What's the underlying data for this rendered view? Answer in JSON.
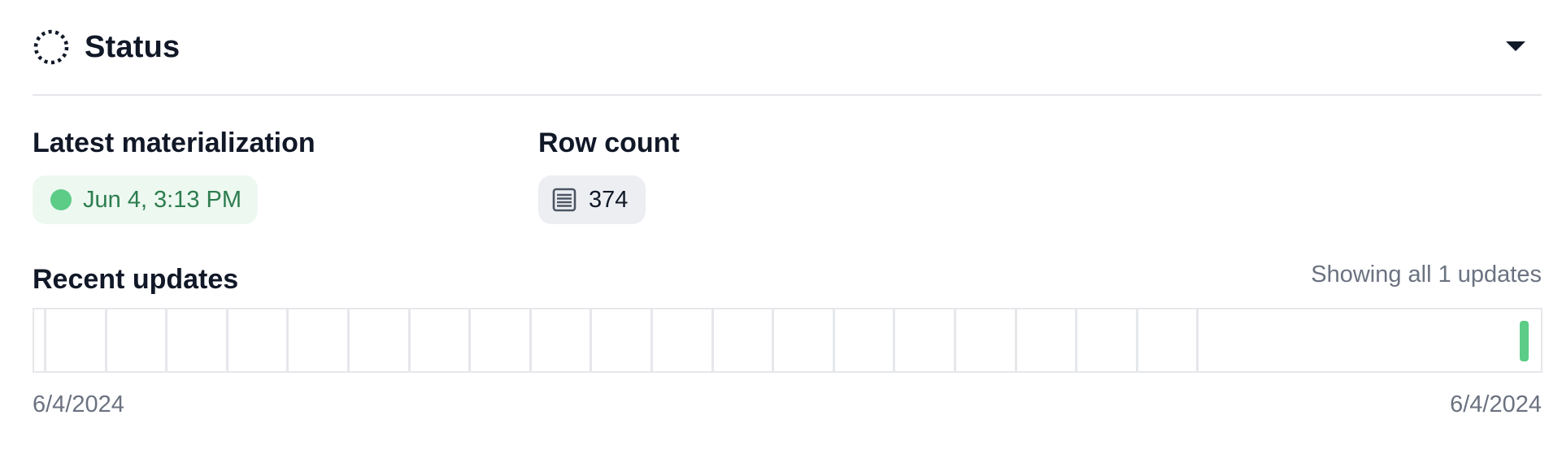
{
  "header": {
    "title": "Status",
    "status_icon": "dashed-circle-icon",
    "collapse_icon": "caret-down-icon"
  },
  "latest_materialization": {
    "label": "Latest materialization",
    "value": "Jun 4, 3:13 PM",
    "status": "success",
    "status_color": "#5ccc87"
  },
  "row_count": {
    "label": "Row count",
    "value": "374",
    "icon": "table-rows-icon"
  },
  "recent_updates": {
    "title": "Recent updates",
    "summary": "Showing all 1 updates",
    "start_date": "6/4/2024",
    "end_date": "6/4/2024",
    "tick_count": 20,
    "updates": [
      {
        "position": 0.992,
        "color": "#5ccc87"
      }
    ]
  },
  "colors": {
    "success": "#5ccc87",
    "success_bg": "#edf8f1",
    "success_text": "#2e7d4f",
    "neutral_bg": "#eceef2",
    "muted_text": "#6b7280",
    "border": "#e5e7eb"
  }
}
